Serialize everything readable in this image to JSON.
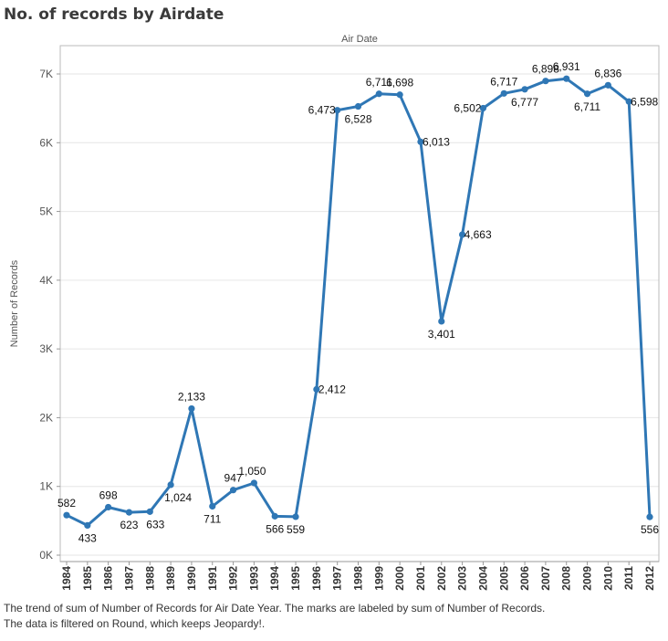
{
  "title": "No. of records by Airdate",
  "caption_line1": "The trend of sum of Number of Records for Air Date Year.  The marks are labeled by sum of Number of Records.",
  "caption_line2": "The data is filtered on Round, which keeps Jeopardy!.",
  "colors": {
    "line": "#2f77b5",
    "grid": "#e6e6e6",
    "axis": "#bbbbbb"
  },
  "chart_data": {
    "type": "line",
    "title": "No. of records by Airdate",
    "column_header": "Air Date",
    "ylabel": "Number of Records",
    "xlabel": "",
    "ylim": [
      0,
      7000
    ],
    "y_ticks": [
      {
        "value": 0,
        "label": "0K"
      },
      {
        "value": 1000,
        "label": "1K"
      },
      {
        "value": 2000,
        "label": "2K"
      },
      {
        "value": 3000,
        "label": "3K"
      },
      {
        "value": 4000,
        "label": "4K"
      },
      {
        "value": 5000,
        "label": "5K"
      },
      {
        "value": 6000,
        "label": "6K"
      },
      {
        "value": 7000,
        "label": "7K"
      }
    ],
    "grid": true,
    "x": [
      "1984",
      "1985",
      "1986",
      "1987",
      "1988",
      "1989",
      "1990",
      "1991",
      "1992",
      "1993",
      "1994",
      "1995",
      "1996",
      "1997",
      "1998",
      "1999",
      "2000",
      "2001",
      "2002",
      "2003",
      "2004",
      "2005",
      "2006",
      "2007",
      "2008",
      "2009",
      "2010",
      "2011",
      "2012"
    ],
    "values": [
      582,
      433,
      698,
      623,
      633,
      1024,
      2133,
      711,
      947,
      1050,
      566,
      559,
      2412,
      6473,
      6528,
      6711,
      6698,
      6013,
      3401,
      4663,
      6502,
      6717,
      6777,
      6898,
      6931,
      6711,
      6836,
      6598,
      556
    ],
    "labels": [
      "582",
      "433",
      "698",
      "623",
      "633",
      "1,024",
      "2,133",
      "711",
      "947",
      "1,050",
      "566",
      "559",
      "2,412",
      "6,473",
      "6,528",
      "6,711",
      "6,698",
      "6,013",
      "3,401",
      "4,663",
      "6,502",
      "6,717",
      "6,777",
      "6,898",
      "6,931",
      "6,711",
      "6,836",
      "6,598",
      "556"
    ]
  }
}
